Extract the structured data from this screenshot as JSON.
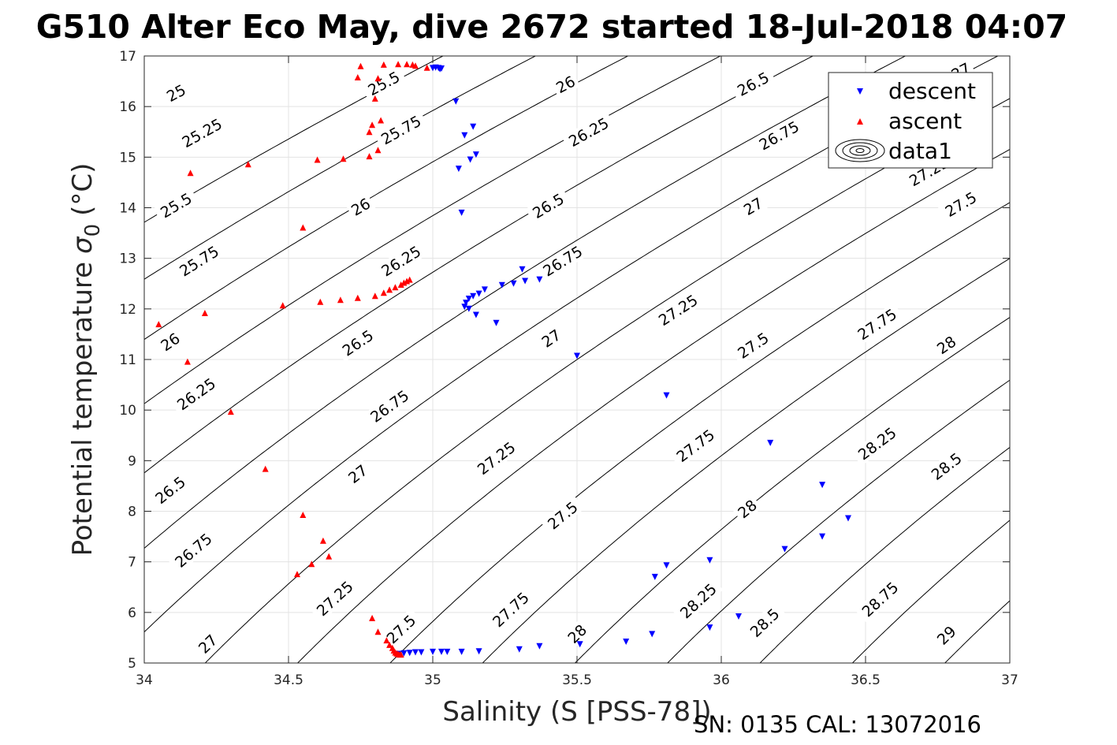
{
  "chart_data": {
    "type": "scatter",
    "title": "G510 Alter Eco May, dive 2672 started 18-Jul-2018 04:07",
    "xlabel": "Salinity (S [PSS-78])",
    "ylabel": "Potential temperature",
    "ylabel_symbol": "σ",
    "ylabel_subscript": "0",
    "ylabel_unit": "(°C)",
    "xlim": [
      34,
      37
    ],
    "ylim": [
      5,
      17
    ],
    "xticks": [
      "34",
      "34.5",
      "35",
      "35.5",
      "36",
      "36.5",
      "37"
    ],
    "yticks": [
      "5",
      "6",
      "7",
      "8",
      "9",
      "10",
      "11",
      "12",
      "13",
      "14",
      "15",
      "16",
      "17"
    ],
    "grid": true,
    "legend_position": "top-right",
    "legend": [
      "descent",
      "ascent",
      "data1"
    ],
    "series": [
      {
        "name": "descent",
        "marker": "triangle-down",
        "color": "#0000ff",
        "points": [
          [
            35.0,
            16.76
          ],
          [
            35.01,
            16.77
          ],
          [
            35.02,
            16.76
          ],
          [
            35.025,
            16.74
          ],
          [
            35.03,
            16.75
          ],
          [
            35.08,
            16.1
          ],
          [
            35.11,
            15.43
          ],
          [
            35.14,
            15.6
          ],
          [
            35.15,
            15.05
          ],
          [
            35.13,
            14.95
          ],
          [
            35.09,
            14.77
          ],
          [
            35.1,
            13.9
          ],
          [
            35.31,
            12.78
          ],
          [
            35.32,
            12.55
          ],
          [
            35.37,
            12.58
          ],
          [
            35.28,
            12.5
          ],
          [
            35.24,
            12.47
          ],
          [
            35.18,
            12.38
          ],
          [
            35.16,
            12.3
          ],
          [
            35.14,
            12.25
          ],
          [
            35.125,
            12.2
          ],
          [
            35.115,
            12.12
          ],
          [
            35.11,
            12.04
          ],
          [
            35.125,
            12.0
          ],
          [
            35.15,
            11.88
          ],
          [
            35.22,
            11.72
          ],
          [
            35.5,
            11.07
          ],
          [
            35.81,
            10.29
          ],
          [
            36.17,
            9.35
          ],
          [
            36.35,
            8.52
          ],
          [
            36.44,
            7.86
          ],
          [
            36.35,
            7.5
          ],
          [
            36.22,
            7.25
          ],
          [
            35.96,
            7.03
          ],
          [
            35.81,
            6.93
          ],
          [
            35.77,
            6.7
          ],
          [
            36.06,
            5.92
          ],
          [
            35.96,
            5.7
          ],
          [
            35.76,
            5.57
          ],
          [
            35.67,
            5.42
          ],
          [
            35.51,
            5.37
          ],
          [
            35.37,
            5.33
          ],
          [
            35.3,
            5.27
          ],
          [
            35.16,
            5.23
          ],
          [
            35.1,
            5.22
          ],
          [
            35.05,
            5.22
          ],
          [
            35.03,
            5.22
          ],
          [
            35.0,
            5.22
          ],
          [
            34.96,
            5.21
          ],
          [
            34.94,
            5.21
          ],
          [
            34.92,
            5.2
          ],
          [
            34.9,
            5.19
          ],
          [
            34.88,
            5.18
          ]
        ]
      },
      {
        "name": "ascent",
        "marker": "triangle-up",
        "color": "#ff0000",
        "points": [
          [
            34.75,
            16.8
          ],
          [
            34.83,
            16.83
          ],
          [
            34.88,
            16.84
          ],
          [
            34.91,
            16.84
          ],
          [
            34.93,
            16.83
          ],
          [
            34.94,
            16.81
          ],
          [
            34.98,
            16.77
          ],
          [
            34.74,
            16.58
          ],
          [
            34.81,
            16.56
          ],
          [
            34.8,
            16.16
          ],
          [
            34.82,
            15.73
          ],
          [
            34.79,
            15.64
          ],
          [
            34.78,
            15.5
          ],
          [
            34.81,
            15.14
          ],
          [
            34.78,
            15.02
          ],
          [
            34.69,
            14.97
          ],
          [
            34.6,
            14.95
          ],
          [
            34.36,
            14.86
          ],
          [
            34.16,
            14.69
          ],
          [
            34.55,
            13.61
          ],
          [
            34.92,
            12.58
          ],
          [
            34.91,
            12.55
          ],
          [
            34.9,
            12.52
          ],
          [
            34.89,
            12.48
          ],
          [
            34.87,
            12.43
          ],
          [
            34.85,
            12.38
          ],
          [
            34.83,
            12.32
          ],
          [
            34.8,
            12.26
          ],
          [
            34.74,
            12.22
          ],
          [
            34.68,
            12.18
          ],
          [
            34.61,
            12.14
          ],
          [
            34.48,
            12.07
          ],
          [
            34.21,
            11.92
          ],
          [
            34.05,
            11.7
          ],
          [
            34.15,
            10.96
          ],
          [
            34.3,
            9.97
          ],
          [
            34.42,
            8.84
          ],
          [
            34.55,
            7.93
          ],
          [
            34.62,
            7.42
          ],
          [
            34.64,
            7.11
          ],
          [
            34.58,
            6.96
          ],
          [
            34.53,
            6.76
          ],
          [
            34.79,
            5.89
          ],
          [
            34.81,
            5.62
          ],
          [
            34.84,
            5.45
          ],
          [
            34.85,
            5.36
          ],
          [
            34.86,
            5.3
          ],
          [
            34.865,
            5.25
          ],
          [
            34.87,
            5.21
          ],
          [
            34.875,
            5.19
          ],
          [
            34.88,
            5.18
          ],
          [
            34.885,
            5.17
          ],
          [
            34.89,
            5.17
          ]
        ]
      }
    ],
    "contours": {
      "name": "data1",
      "quantity": "sigma_0",
      "levels": [
        25,
        25.25,
        25.5,
        25.75,
        26,
        26.25,
        26.5,
        26.75,
        27,
        27.25,
        27.5,
        27.75,
        28,
        28.25,
        28.5,
        28.75,
        29
      ],
      "labels": [
        {
          "text": "25",
          "s": 34.11,
          "t": 16.27
        },
        {
          "text": "25.25",
          "s": 34.2,
          "t": 15.48
        },
        {
          "text": "25.5",
          "s": 34.11,
          "t": 14.05
        },
        {
          "text": "25.75",
          "s": 34.19,
          "t": 12.95
        },
        {
          "text": "26",
          "s": 34.09,
          "t": 11.35
        },
        {
          "text": "26.25",
          "s": 34.18,
          "t": 10.32
        },
        {
          "text": "26.5",
          "s": 34.09,
          "t": 8.42
        },
        {
          "text": "26.75",
          "s": 34.17,
          "t": 7.23
        },
        {
          "text": "27",
          "s": 34.22,
          "t": 5.38
        },
        {
          "text": "25.5",
          "s": 34.83,
          "t": 16.46
        },
        {
          "text": "25.75",
          "s": 34.89,
          "t": 15.54
        },
        {
          "text": "26",
          "s": 34.75,
          "t": 14.02
        },
        {
          "text": "26.25",
          "s": 34.89,
          "t": 12.95
        },
        {
          "text": "26.5",
          "s": 34.74,
          "t": 11.33
        },
        {
          "text": "26.75",
          "s": 34.85,
          "t": 10.08
        },
        {
          "text": "27",
          "s": 34.74,
          "t": 8.74
        },
        {
          "text": "27.25",
          "s": 34.66,
          "t": 6.28
        },
        {
          "text": "27.5",
          "s": 34.89,
          "t": 5.67
        },
        {
          "text": "26",
          "s": 35.46,
          "t": 16.44
        },
        {
          "text": "26.25",
          "s": 35.54,
          "t": 15.5
        },
        {
          "text": "26.5",
          "s": 35.4,
          "t": 14.04
        },
        {
          "text": "26.75",
          "s": 35.45,
          "t": 12.95
        },
        {
          "text": "27",
          "s": 35.41,
          "t": 11.42
        },
        {
          "text": "27.25",
          "s": 35.22,
          "t": 9.05
        },
        {
          "text": "27.5",
          "s": 35.45,
          "t": 7.92
        },
        {
          "text": "27.75",
          "s": 35.27,
          "t": 6.06
        },
        {
          "text": "28",
          "s": 35.5,
          "t": 5.58
        },
        {
          "text": "26.5",
          "s": 36.11,
          "t": 16.45
        },
        {
          "text": "26.75",
          "s": 36.2,
          "t": 15.43
        },
        {
          "text": "27",
          "s": 36.11,
          "t": 14.03
        },
        {
          "text": "27.25",
          "s": 35.85,
          "t": 11.98
        },
        {
          "text": "27.5",
          "s": 36.11,
          "t": 11.28
        },
        {
          "text": "27.75",
          "s": 35.91,
          "t": 9.3
        },
        {
          "text": "28",
          "s": 36.09,
          "t": 8.05
        },
        {
          "text": "28.25",
          "s": 35.92,
          "t": 6.23
        },
        {
          "text": "28.5",
          "s": 36.15,
          "t": 5.8
        },
        {
          "text": "27.25",
          "s": 36.72,
          "t": 14.72
        },
        {
          "text": "27.5",
          "s": 36.83,
          "t": 14.07
        },
        {
          "text": "27.75",
          "s": 36.54,
          "t": 11.7
        },
        {
          "text": "28",
          "s": 36.78,
          "t": 11.29
        },
        {
          "text": "28.25",
          "s": 36.54,
          "t": 9.34
        },
        {
          "text": "28.5",
          "s": 36.78,
          "t": 8.89
        },
        {
          "text": "28.75",
          "s": 36.55,
          "t": 6.26
        },
        {
          "text": "29",
          "s": 36.78,
          "t": 5.55
        },
        {
          "text": "27",
          "s": 36.83,
          "t": 16.7
        }
      ]
    }
  },
  "footer": {
    "serial": "SN: 0135  CAL: 13072016"
  }
}
